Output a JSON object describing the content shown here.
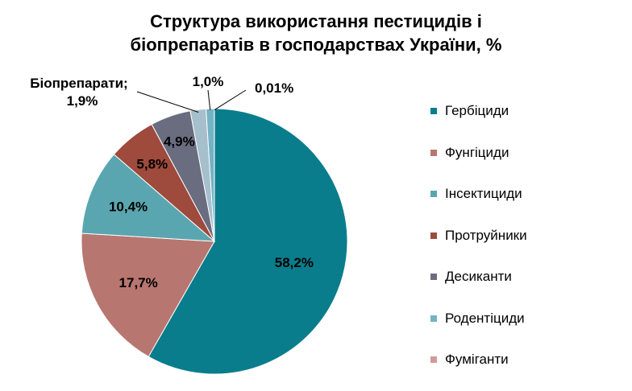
{
  "chart_data": {
    "type": "pie",
    "title": "Структура використання пестицидів і біопрепаратів в господарствах України, %",
    "title_lines": [
      "Структура використання пестицидів і",
      "біопрепаратів в господарствах України, %"
    ],
    "categories": [
      "Гербіциди",
      "Фунгіциди",
      "Інсектициди",
      "Протруйники",
      "Десиканти",
      "Біопрепарати",
      "Родентіциди",
      "Фуміганти"
    ],
    "values": [
      58.2,
      17.7,
      10.4,
      5.8,
      4.9,
      1.9,
      1.0,
      0.01
    ],
    "data_labels": [
      "58,2%",
      "17,7%",
      "10,4%",
      "5,8%",
      "4,9%",
      "Біопрепарати; 1,9%",
      "1,0%",
      "0,01%"
    ],
    "legend_entries": [
      "Гербіциди",
      "Фунгіциди",
      "Інсектициди",
      "Протруйники",
      "Десиканти",
      "Родентіциди",
      "Фуміганти"
    ],
    "colors": [
      "#0a7d8c",
      "#b87670",
      "#5aa6b0",
      "#9e4a3c",
      "#6a6d80",
      "#a6bfcc",
      "#73b3c4",
      "#d29a96"
    ],
    "legend_position": "right",
    "start_angle": "12 o'clock, clockwise"
  },
  "labels": {
    "bio_line1": "Біопрепарати;",
    "bio_line2": "1,9%"
  }
}
